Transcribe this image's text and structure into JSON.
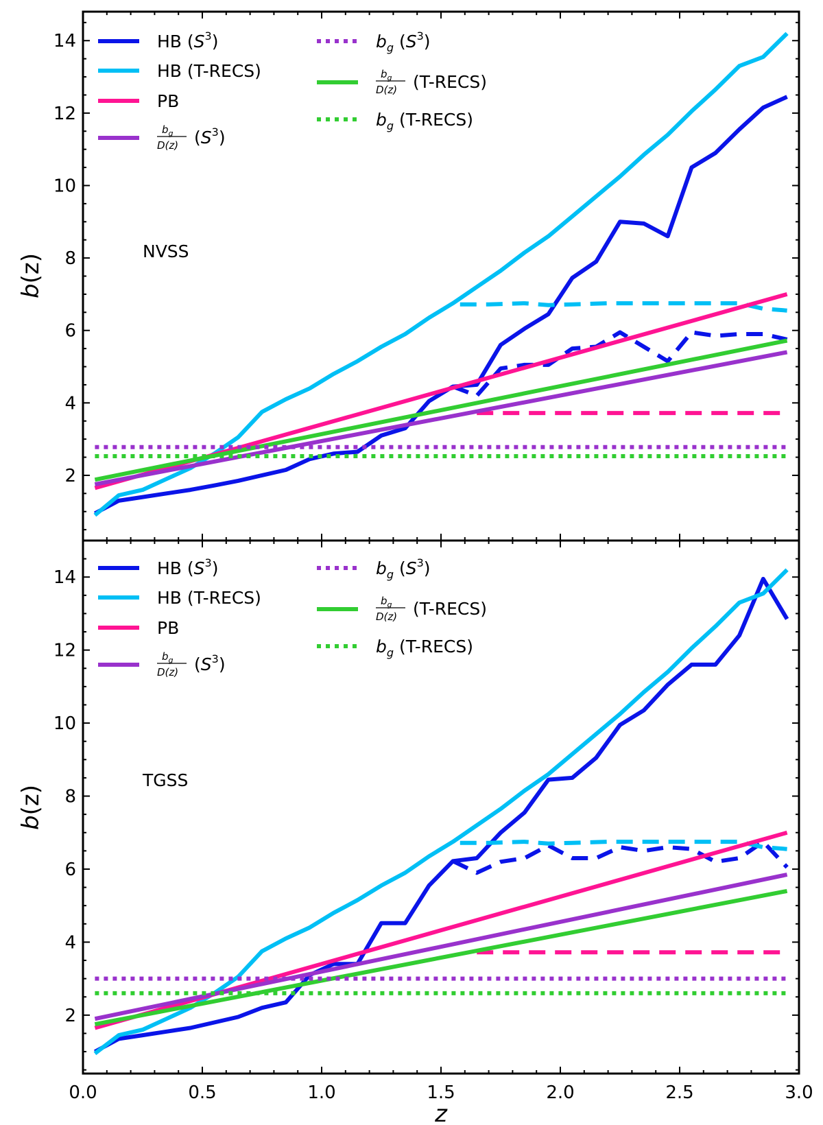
{
  "colors": {
    "hb_s3": "#0a14e8",
    "hb_trecs": "#00bff5",
    "pb": "#ff1493",
    "purple": "#9932cc",
    "green": "#32cd32"
  },
  "chart_data": [
    {
      "type": "line",
      "panel_label": "NVSS",
      "ylabel_prefix": "b",
      "ylabel_suffix": "(z)",
      "xlabel": "",
      "xlim": [
        0.0,
        3.0
      ],
      "ylim": [
        0.2,
        14.8
      ],
      "yticks": [
        2,
        4,
        6,
        8,
        10,
        12,
        14
      ],
      "ytick_labels": [
        "2",
        "4",
        "6",
        "8",
        "10",
        "12",
        "14"
      ],
      "legend": {
        "hb_s3": {
          "main": "HB (",
          "var": "S",
          "sup": "3",
          "end": ")"
        },
        "hb_trecs": {
          "main": "HB (T-RECS)"
        },
        "pb": {
          "main": "PB"
        },
        "bgd_s3": {
          "num": "b",
          "num_sub": "g",
          "den": "D(z)",
          "var": "S",
          "sup": "3"
        },
        "bg_s3": {
          "var": "b",
          "sub": "g",
          "var2": "S",
          "sup": "3"
        },
        "bgd_trecs": {
          "num": "b",
          "num_sub": "g",
          "den": "D(z)",
          "after": "(T-RECS)"
        },
        "bg_trecs": {
          "var": "b",
          "sub": "g",
          "after": "(T-RECS)"
        }
      },
      "series": [
        {
          "name": "HB (S^3)",
          "key": "hb_s3",
          "style": "solid",
          "x": [
            0.05,
            0.15,
            0.25,
            0.35,
            0.45,
            0.55,
            0.65,
            0.75,
            0.85,
            0.95,
            1.05,
            1.15,
            1.25,
            1.35,
            1.45,
            1.55,
            1.65,
            1.75,
            1.85,
            1.95,
            2.05,
            2.15,
            2.25,
            2.35,
            2.45,
            2.55,
            2.65,
            2.75,
            2.85,
            2.95
          ],
          "y": [
            0.95,
            1.3,
            1.4,
            1.5,
            1.6,
            1.72,
            1.85,
            2.0,
            2.15,
            2.45,
            2.6,
            2.65,
            3.1,
            3.3,
            4.05,
            4.45,
            4.5,
            5.6,
            6.05,
            6.45,
            7.45,
            7.9,
            9.0,
            8.95,
            8.6,
            10.5,
            10.9,
            11.55,
            12.15,
            12.45
          ]
        },
        {
          "name": "HB (T-RECS)",
          "key": "hb_trecs",
          "style": "solid",
          "x": [
            0.05,
            0.15,
            0.25,
            0.35,
            0.45,
            0.55,
            0.65,
            0.75,
            0.85,
            0.95,
            1.05,
            1.15,
            1.25,
            1.35,
            1.45,
            1.55,
            1.65,
            1.75,
            1.85,
            1.95,
            2.05,
            2.15,
            2.25,
            2.35,
            2.45,
            2.55,
            2.65,
            2.75,
            2.85,
            2.95
          ],
          "y": [
            0.9,
            1.45,
            1.6,
            1.9,
            2.2,
            2.6,
            3.05,
            3.75,
            4.1,
            4.4,
            4.8,
            5.15,
            5.55,
            5.9,
            6.35,
            6.75,
            7.2,
            7.65,
            8.15,
            8.6,
            9.15,
            9.7,
            10.25,
            10.85,
            11.4,
            12.05,
            12.65,
            13.3,
            13.55,
            14.2
          ]
        },
        {
          "name": "HB (S^3) dashed",
          "key": "hb_s3",
          "style": "dashed",
          "x": [
            1.55,
            1.65,
            1.75,
            1.85,
            1.95,
            2.05,
            2.15,
            2.25,
            2.35,
            2.45,
            2.55,
            2.65,
            2.75,
            2.85,
            2.95
          ],
          "y": [
            4.45,
            4.2,
            4.95,
            5.05,
            5.05,
            5.5,
            5.55,
            5.95,
            5.55,
            5.15,
            5.95,
            5.85,
            5.9,
            5.9,
            5.75
          ]
        },
        {
          "name": "HB (T-RECS) dashed",
          "key": "hb_trecs",
          "style": "dashed",
          "x": [
            1.58,
            1.7,
            1.85,
            1.95,
            2.05,
            2.2,
            2.4,
            2.6,
            2.75,
            2.85,
            2.95
          ],
          "y": [
            6.72,
            6.72,
            6.75,
            6.7,
            6.72,
            6.75,
            6.75,
            6.75,
            6.75,
            6.6,
            6.55
          ]
        },
        {
          "name": "PB",
          "key": "pb",
          "style": "solid",
          "x": [
            0.05,
            2.95
          ],
          "y": [
            1.65,
            7.0
          ]
        },
        {
          "name": "PB dashed",
          "key": "pb",
          "style": "dashed",
          "x": [
            1.65,
            2.95
          ],
          "y": [
            3.72,
            3.72
          ]
        },
        {
          "name": "bg/D(z) (S^3)",
          "key": "purple",
          "style": "solid",
          "x": [
            0.05,
            2.95
          ],
          "y": [
            1.75,
            5.4
          ]
        },
        {
          "name": "bg/D(z) (T-RECS)",
          "key": "green",
          "style": "solid",
          "x": [
            0.05,
            2.95
          ],
          "y": [
            1.88,
            5.72
          ]
        },
        {
          "name": "bg (S^3)",
          "key": "purple",
          "style": "dotted",
          "x": [
            0.05,
            2.95
          ],
          "y": [
            2.78,
            2.78
          ]
        },
        {
          "name": "bg (T-RECS)",
          "key": "green",
          "style": "dotted",
          "x": [
            0.05,
            2.95
          ],
          "y": [
            2.53,
            2.53
          ]
        }
      ]
    },
    {
      "type": "line",
      "panel_label": "TGSS",
      "ylabel_prefix": "b",
      "ylabel_suffix": "(z)",
      "xlabel": "z",
      "xlim": [
        0.0,
        3.0
      ],
      "ylim": [
        0.4,
        15.0
      ],
      "yticks": [
        2,
        4,
        6,
        8,
        10,
        12,
        14
      ],
      "ytick_labels": [
        "2",
        "4",
        "6",
        "8",
        "10",
        "12",
        "14"
      ],
      "xticks": [
        0.0,
        0.5,
        1.0,
        1.5,
        2.0,
        2.5,
        3.0
      ],
      "xtick_labels": [
        "0.0",
        "0.5",
        "1.0",
        "1.5",
        "2.0",
        "2.5",
        "3.0"
      ],
      "legend": {
        "hb_s3": {
          "main": "HB (",
          "var": "S",
          "sup": "3",
          "end": ")"
        },
        "hb_trecs": {
          "main": "HB (T-RECS)"
        },
        "pb": {
          "main": "PB"
        },
        "bgd_s3": {
          "num": "b",
          "num_sub": "g",
          "den": "D(z)",
          "var": "S",
          "sup": "3"
        },
        "bg_s3": {
          "var": "b",
          "sub": "g",
          "var2": "S",
          "sup": "3"
        },
        "bgd_trecs": {
          "num": "b",
          "num_sub": "g",
          "den": "D(z)",
          "after": "(T-RECS)"
        },
        "bg_trecs": {
          "var": "b",
          "sub": "g",
          "after": "(T-RECS)"
        }
      },
      "series": [
        {
          "name": "HB (S^3)",
          "key": "hb_s3",
          "style": "solid",
          "x": [
            0.05,
            0.15,
            0.25,
            0.35,
            0.45,
            0.55,
            0.65,
            0.75,
            0.85,
            0.95,
            1.05,
            1.15,
            1.25,
            1.35,
            1.45,
            1.55,
            1.65,
            1.75,
            1.85,
            1.95,
            2.05,
            2.15,
            2.25,
            2.35,
            2.45,
            2.55,
            2.65,
            2.75,
            2.85,
            2.95
          ],
          "y": [
            1.0,
            1.35,
            1.45,
            1.55,
            1.65,
            1.8,
            1.95,
            2.2,
            2.35,
            3.1,
            3.4,
            3.4,
            4.52,
            4.52,
            5.55,
            6.22,
            6.3,
            7.0,
            7.55,
            8.45,
            8.5,
            9.05,
            9.95,
            10.35,
            11.05,
            11.6,
            11.6,
            12.4,
            13.95,
            12.85
          ]
        },
        {
          "name": "HB (T-RECS)",
          "key": "hb_trecs",
          "style": "solid",
          "x": [
            0.05,
            0.15,
            0.25,
            0.35,
            0.45,
            0.55,
            0.65,
            0.75,
            0.85,
            0.95,
            1.05,
            1.15,
            1.25,
            1.35,
            1.45,
            1.55,
            1.65,
            1.75,
            1.85,
            1.95,
            2.05,
            2.15,
            2.25,
            2.35,
            2.45,
            2.55,
            2.65,
            2.75,
            2.85,
            2.95
          ],
          "y": [
            0.95,
            1.45,
            1.6,
            1.9,
            2.2,
            2.6,
            3.05,
            3.75,
            4.1,
            4.4,
            4.8,
            5.15,
            5.55,
            5.9,
            6.35,
            6.75,
            7.2,
            7.65,
            8.15,
            8.6,
            9.15,
            9.7,
            10.25,
            10.85,
            11.4,
            12.05,
            12.65,
            13.3,
            13.55,
            14.2
          ]
        },
        {
          "name": "HB (S^3) dashed",
          "key": "hb_s3",
          "style": "dashed",
          "x": [
            1.55,
            1.65,
            1.75,
            1.85,
            1.95,
            2.05,
            2.15,
            2.25,
            2.35,
            2.45,
            2.55,
            2.65,
            2.75,
            2.85,
            2.95
          ],
          "y": [
            6.22,
            5.9,
            6.2,
            6.3,
            6.65,
            6.3,
            6.3,
            6.6,
            6.5,
            6.6,
            6.55,
            6.2,
            6.3,
            6.75,
            6.05
          ]
        },
        {
          "name": "HB (T-RECS) dashed",
          "key": "hb_trecs",
          "style": "dashed",
          "x": [
            1.58,
            1.7,
            1.85,
            1.95,
            2.05,
            2.2,
            2.4,
            2.6,
            2.75,
            2.85,
            2.95
          ],
          "y": [
            6.72,
            6.72,
            6.75,
            6.7,
            6.72,
            6.75,
            6.75,
            6.75,
            6.75,
            6.6,
            6.55
          ]
        },
        {
          "name": "PB",
          "key": "pb",
          "style": "solid",
          "x": [
            0.05,
            2.95
          ],
          "y": [
            1.65,
            7.0
          ]
        },
        {
          "name": "PB dashed",
          "key": "pb",
          "style": "dashed",
          "x": [
            1.65,
            2.95
          ],
          "y": [
            3.72,
            3.72
          ]
        },
        {
          "name": "bg/D(z) (S^3)",
          "key": "purple",
          "style": "solid",
          "x": [
            0.05,
            2.95
          ],
          "y": [
            1.9,
            5.85
          ]
        },
        {
          "name": "bg/D(z) (T-RECS)",
          "key": "green",
          "style": "solid",
          "x": [
            0.05,
            2.95
          ],
          "y": [
            1.75,
            5.4
          ]
        },
        {
          "name": "bg (S^3)",
          "key": "purple",
          "style": "dotted",
          "x": [
            0.05,
            2.95
          ],
          "y": [
            3.0,
            3.0
          ]
        },
        {
          "name": "bg (T-RECS)",
          "key": "green",
          "style": "dotted",
          "x": [
            0.05,
            2.95
          ],
          "y": [
            2.6,
            2.6
          ]
        }
      ]
    }
  ]
}
